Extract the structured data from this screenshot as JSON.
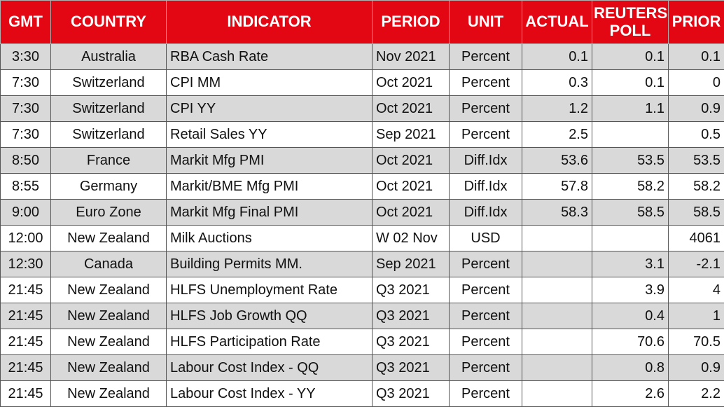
{
  "table": {
    "header": [
      "GMT",
      "COUNTRY",
      "INDICATOR",
      "PERIOD",
      "UNIT",
      "ACTUAL",
      "REUTERS POLL",
      "PRIOR"
    ],
    "rows": [
      [
        "3:30",
        "Australia",
        "RBA Cash Rate",
        "Nov 2021",
        "Percent",
        "0.1",
        "0.1",
        "0.1"
      ],
      [
        "7:30",
        "Switzerland",
        "CPI MM",
        "Oct 2021",
        "Percent",
        "0.3",
        "0.1",
        "0"
      ],
      [
        "7:30",
        "Switzerland",
        "CPI YY",
        "Oct 2021",
        "Percent",
        "1.2",
        "1.1",
        "0.9"
      ],
      [
        "7:30",
        "Switzerland",
        "Retail Sales YY",
        "Sep 2021",
        "Percent",
        "2.5",
        null,
        "0.5"
      ],
      [
        "8:50",
        "France",
        "Markit Mfg PMI",
        "Oct 2021",
        "Diff.Idx",
        "53.6",
        "53.5",
        "53.5"
      ],
      [
        "8:55",
        "Germany",
        "Markit/BME Mfg PMI",
        "Oct 2021",
        "Diff.Idx",
        "57.8",
        "58.2",
        "58.2"
      ],
      [
        "9:00",
        "Euro Zone",
        "Markit Mfg Final PMI",
        "Oct 2021",
        "Diff.Idx",
        "58.3",
        "58.5",
        "58.5"
      ],
      [
        "12:00",
        "New Zealand",
        "Milk Auctions",
        "W 02 Nov",
        "USD",
        null,
        null,
        "4061"
      ],
      [
        "12:30",
        "Canada",
        "Building Permits MM.",
        "Sep 2021",
        "Percent",
        null,
        "3.1",
        "-2.1"
      ],
      [
        "21:45",
        "New Zealand",
        "HLFS Unemployment Rate",
        "Q3 2021",
        "Percent",
        null,
        "3.9",
        "4"
      ],
      [
        "21:45",
        "New Zealand",
        "HLFS Job Growth QQ",
        "Q3 2021",
        "Percent",
        null,
        "0.4",
        "1"
      ],
      [
        "21:45",
        "New Zealand",
        "HLFS Participation Rate",
        "Q3 2021",
        "Percent",
        null,
        "70.6",
        "70.5"
      ],
      [
        "21:45",
        "New Zealand",
        "Labour Cost Index - QQ",
        "Q3 2021",
        "Percent",
        null,
        "0.8",
        "0.9"
      ],
      [
        "21:45",
        "New Zealand",
        "Labour Cost Index - YY",
        "Q3 2021",
        "Percent",
        null,
        "2.6",
        "2.2"
      ]
    ]
  }
}
